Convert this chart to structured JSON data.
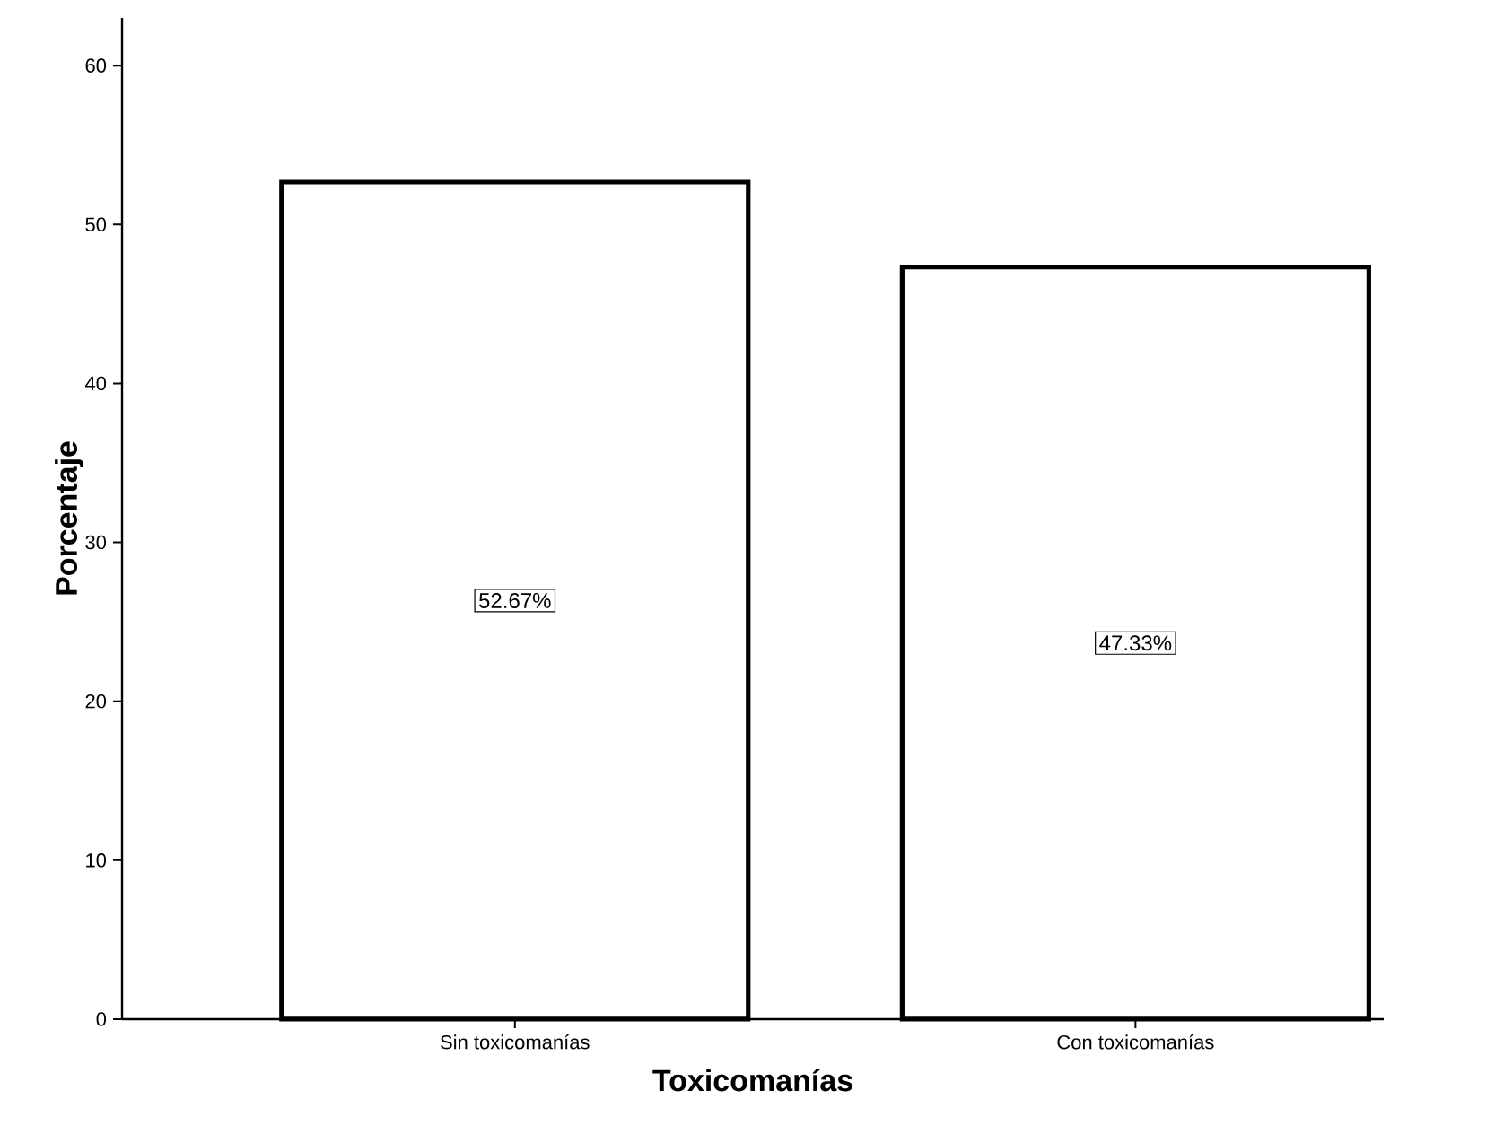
{
  "chart_data": {
    "type": "bar",
    "xlabel": "Toxicomanías",
    "ylabel": "Porcentaje",
    "categories": [
      "Sin toxicomanías",
      "Con toxicomanías"
    ],
    "values": [
      52.67,
      47.33
    ],
    "value_labels": [
      "52.67%",
      "47.33%"
    ],
    "color": "#ffffff",
    "ylim": [
      0,
      63
    ],
    "yticks": [
      0,
      10,
      20,
      30,
      40,
      50,
      60
    ],
    "grid": false
  }
}
